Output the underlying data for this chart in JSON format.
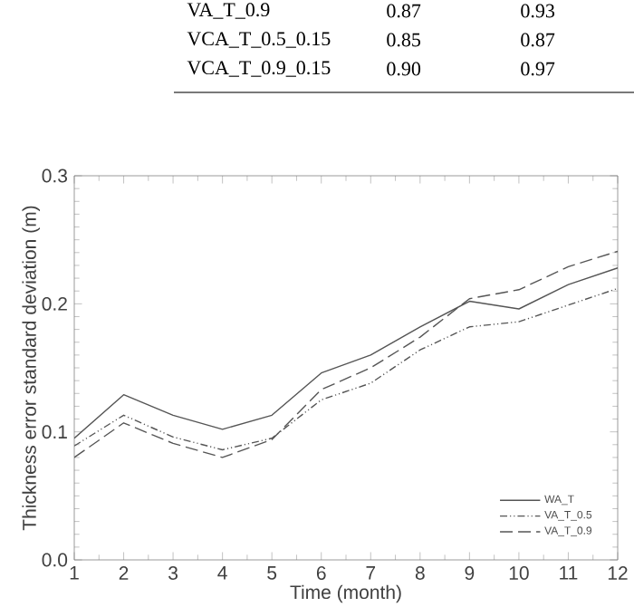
{
  "chart_data": {
    "type": "line",
    "xlabel": "Time (month)",
    "ylabel": "Thickness error standard deviation (m)",
    "x": [
      1,
      2,
      3,
      4,
      5,
      6,
      7,
      8,
      9,
      10,
      11,
      12
    ],
    "series": [
      {
        "name": "WA_T",
        "color": "#555555",
        "line_style": "solid",
        "values": [
          0.095,
          0.129,
          0.113,
          0.102,
          0.113,
          0.146,
          0.16,
          0.182,
          0.202,
          0.196,
          0.215,
          0.228
        ]
      },
      {
        "name": "VA_T_0.5",
        "color": "#555555",
        "line_style": "dashdotdotted",
        "values": [
          0.089,
          0.113,
          0.096,
          0.086,
          0.095,
          0.125,
          0.138,
          0.164,
          0.182,
          0.186,
          0.199,
          0.212
        ]
      },
      {
        "name": "VA_T_0.9",
        "color": "#555555",
        "line_style": "dashed",
        "values": [
          0.08,
          0.107,
          0.091,
          0.08,
          0.094,
          0.133,
          0.15,
          0.174,
          0.204,
          0.211,
          0.229,
          0.241
        ]
      }
    ],
    "xlim": [
      1,
      12
    ],
    "xticks": [
      1,
      2,
      3,
      4,
      5,
      6,
      7,
      8,
      9,
      10,
      11,
      12
    ],
    "ylim": [
      0,
      0.3
    ],
    "yticks": [
      {
        "value": 0,
        "label": "0.0"
      },
      {
        "value": 0.1,
        "label": "0.1"
      },
      {
        "value": 0.2,
        "label": "0.2"
      },
      {
        "value": 0.3,
        "label": "0.3"
      }
    ],
    "grid": false,
    "legend": "bottom right",
    "marker": "none",
    "annotations": [
      "VA_T_0.9",
      "0.87",
      "0.93",
      "VCA_T_0.5_0.15",
      "0.85",
      "0.87",
      "VCA_T_0.9_0.15",
      "0.90",
      "0.97"
    ]
  }
}
